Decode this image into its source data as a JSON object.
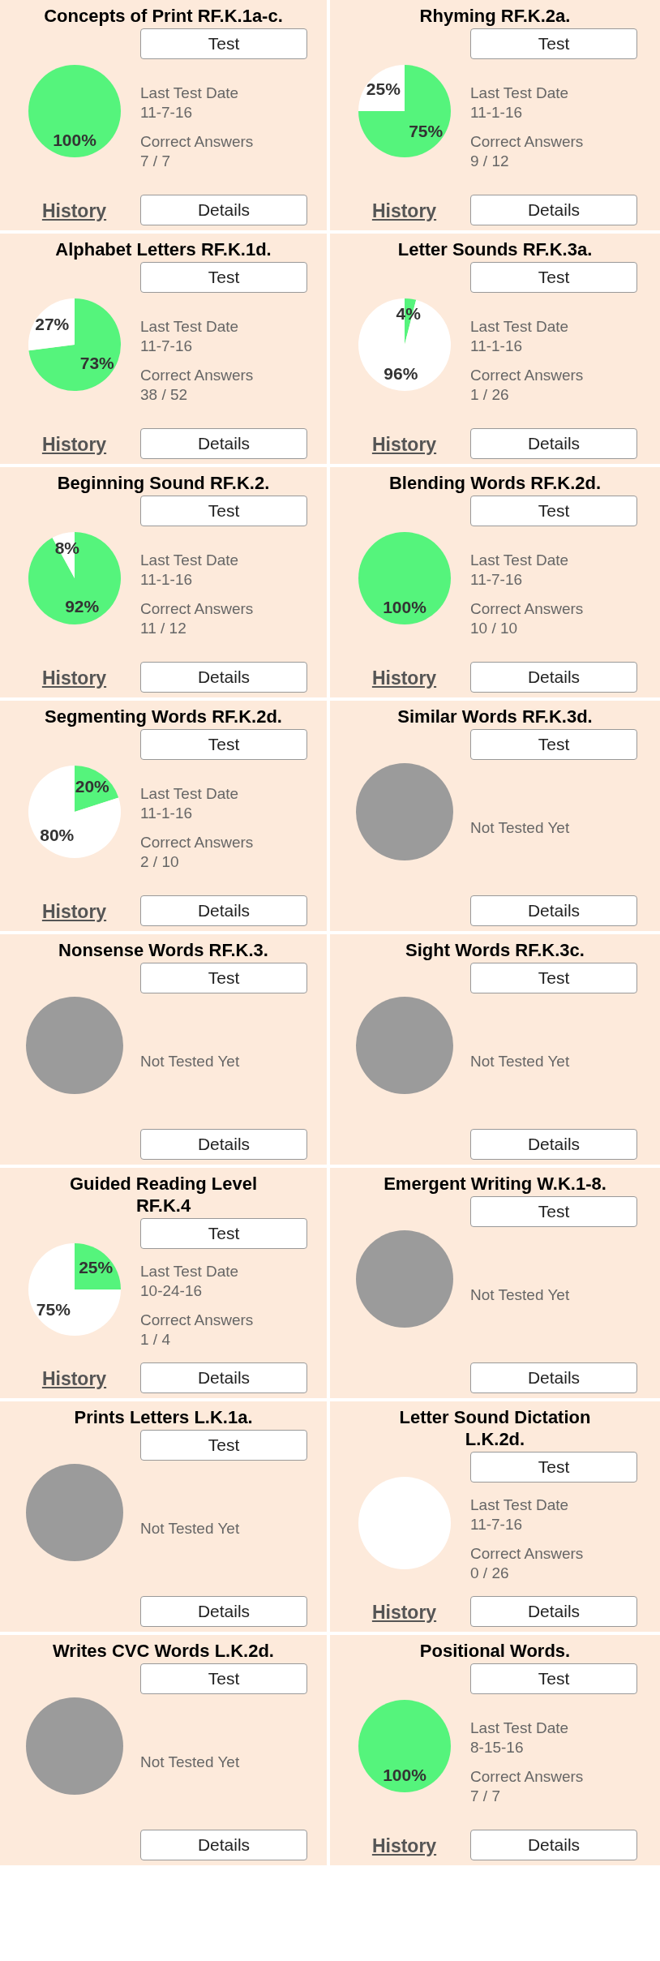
{
  "chart_data": [
    {
      "type": "pie",
      "title": "Concepts of Print RF.K.1a-c.",
      "categories": [
        null
      ],
      "values": [
        100
      ],
      "colors": [
        "#55f47c"
      ],
      "value_labels": [
        "100%"
      ],
      "annotations": [
        "Test",
        "Last Test Date",
        "11-7-16",
        "Correct Answers",
        "7 / 7",
        "History",
        "Details"
      ]
    },
    {
      "type": "pie",
      "title": "Rhyming RF.K.2a.",
      "categories": [
        null,
        null
      ],
      "values": [
        75,
        25
      ],
      "colors": [
        "#55f47c",
        "#ffffff"
      ],
      "value_labels": [
        "75%",
        "25%"
      ],
      "annotations": [
        "Test",
        "Last Test Date",
        "11-1-16",
        "Correct Answers",
        "9 / 12",
        "History",
        "Details"
      ]
    },
    {
      "type": "pie",
      "title": "Alphabet Letters RF.K.1d.",
      "categories": [
        null,
        null
      ],
      "values": [
        73,
        27
      ],
      "colors": [
        "#55f47c",
        "#ffffff"
      ],
      "value_labels": [
        "73%",
        "27%"
      ],
      "annotations": [
        "Test",
        "Last Test Date",
        "11-7-16",
        "Correct Answers",
        "38 / 52",
        "History",
        "Details"
      ]
    },
    {
      "type": "pie",
      "title": "Letter Sounds RF.K.3a.",
      "categories": [
        null,
        null
      ],
      "values": [
        4,
        96
      ],
      "colors": [
        "#55f47c",
        "#ffffff"
      ],
      "value_labels": [
        "4%",
        "96%"
      ],
      "annotations": [
        "Test",
        "Last Test Date",
        "11-1-16",
        "Correct Answers",
        "1 / 26",
        "History",
        "Details"
      ]
    },
    {
      "type": "pie",
      "title": "Beginning Sound RF.K.2.",
      "categories": [
        null,
        null
      ],
      "values": [
        92,
        8
      ],
      "colors": [
        "#55f47c",
        "#ffffff"
      ],
      "value_labels": [
        "92%",
        "8%"
      ],
      "annotations": [
        "Test",
        "Last Test Date",
        "11-1-16",
        "Correct Answers",
        "11 / 12",
        "History",
        "Details"
      ]
    },
    {
      "type": "pie",
      "title": "Blending Words RF.K.2d.",
      "categories": [
        null
      ],
      "values": [
        100
      ],
      "colors": [
        "#55f47c"
      ],
      "value_labels": [
        "100%"
      ],
      "annotations": [
        "Test",
        "Last Test Date",
        "11-7-16",
        "Correct Answers",
        "10 / 10",
        "History",
        "Details"
      ]
    },
    {
      "type": "pie",
      "title": "Segmenting Words RF.K.2d.",
      "categories": [
        null,
        null
      ],
      "values": [
        20,
        80
      ],
      "colors": [
        "#55f47c",
        "#ffffff"
      ],
      "value_labels": [
        "20%",
        "80%"
      ],
      "annotations": [
        "Test",
        "Last Test Date",
        "11-1-16",
        "Correct Answers",
        "2 / 10",
        "History",
        "Details"
      ]
    },
    {
      "type": "other",
      "title": "Similar Words RF.K.3d.",
      "annotations": [
        "Test",
        "Not Tested Yet",
        "Details"
      ]
    },
    {
      "type": "other",
      "title": "Nonsense Words RF.K.3.",
      "annotations": [
        "Test",
        "Not Tested Yet",
        "Details"
      ]
    },
    {
      "type": "other",
      "title": "Sight Words RF.K.3c.",
      "annotations": [
        "Test",
        "Not Tested Yet",
        "Details"
      ]
    },
    {
      "type": "pie",
      "title": "Guided Reading Level\nRF.K.4",
      "categories": [
        null,
        null
      ],
      "values": [
        25,
        75
      ],
      "colors": [
        "#55f47c",
        "#ffffff"
      ],
      "value_labels": [
        "25%",
        "75%"
      ],
      "annotations": [
        "Test",
        "Last Test Date",
        "10-24-16",
        "Correct Answers",
        "1 / 4",
        "History",
        "Details"
      ]
    },
    {
      "type": "other",
      "title": "Emergent Writing W.K.1-8.",
      "annotations": [
        "Test",
        "Not Tested Yet",
        "Details"
      ]
    },
    {
      "type": "other",
      "title": "Prints Letters L.K.1a.",
      "annotations": [
        "Test",
        "Not Tested Yet",
        "Details"
      ]
    },
    {
      "type": "pie",
      "title": "Letter Sound Dictation\nL.K.2d.",
      "categories": [
        null
      ],
      "values": [
        100
      ],
      "colors": [
        "#ffffff"
      ],
      "value_labels": [
        null
      ],
      "annotations": [
        "Test",
        "Last Test Date",
        "11-7-16",
        "Correct Answers",
        "0 / 26",
        "History",
        "Details"
      ]
    },
    {
      "type": "other",
      "title": "Writes CVC Words L.K.2d.",
      "annotations": [
        "Test",
        "Not Tested Yet",
        "Details"
      ]
    },
    {
      "type": "pie",
      "title": "Positional Words.",
      "categories": [
        null
      ],
      "values": [
        100
      ],
      "colors": [
        "#55f47c"
      ],
      "value_labels": [
        "100%"
      ],
      "annotations": [
        "Test",
        "Last Test Date",
        "8-15-16",
        "Correct Answers",
        "7 / 7",
        "History",
        "Details"
      ]
    }
  ]
}
